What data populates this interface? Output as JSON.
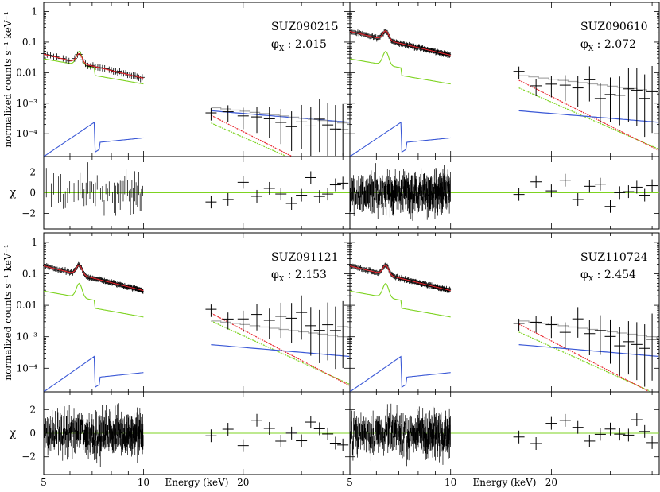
{
  "chart_data": {
    "type": "spectral-fit-grid",
    "xlabel": "Energy (keV)",
    "ylabel": "normalized counts s⁻¹ keV⁻¹",
    "resid_label": "χ",
    "x_ticks": [
      "5",
      "10",
      "20"
    ],
    "xlim_keV": [
      5,
      42
    ],
    "y_ticks": [
      "1",
      "0.1",
      "0.01",
      "10⁻³",
      "10⁻⁴"
    ],
    "ylim_log10": [
      -4.75,
      0.3
    ],
    "resid_ticks": [
      "2",
      "0",
      "−2"
    ],
    "resid_lim": [
      -3.5,
      3.5
    ],
    "colors": {
      "data": "#000000",
      "model_total": "#e8262e",
      "reflection": "#7ed321",
      "secondary": "#3a58d6",
      "hxd_total": "#a8a8a8",
      "zero_line": "#7ed321"
    },
    "panels": [
      {
        "id": "SUZ090215",
        "phi_label": "φ",
        "phi_sub": "X",
        "phi_value": ": 2.015",
        "xis_data_at_3keV_log": -1.4,
        "pin_data_log": -3.3,
        "pin_model_log": -3.25,
        "pin_red_log": -3.4
      },
      {
        "id": "SUZ090610",
        "phi_label": "φ",
        "phi_sub": "X",
        "phi_value": ": 2.072",
        "xis_data_at_3keV_log": -0.65,
        "pin_data_log": -2.2,
        "pin_model_log": -2.2,
        "pin_red_log": -2.25
      },
      {
        "id": "SUZ091121",
        "phi_label": "φ",
        "phi_sub": "X",
        "phi_value": ": 2.153",
        "xis_data_at_3keV_log": -0.75,
        "pin_data_log": -2.2,
        "pin_model_log": -2.6,
        "pin_red_log": -2.25
      },
      {
        "id": "SUZ110724",
        "phi_label": "φ",
        "phi_sub": "X",
        "phi_value": ": 2.454",
        "xis_data_at_3keV_log": -0.75,
        "pin_data_log": -2.6,
        "pin_model_log": -2.6,
        "pin_red_log": -2.6
      }
    ]
  }
}
